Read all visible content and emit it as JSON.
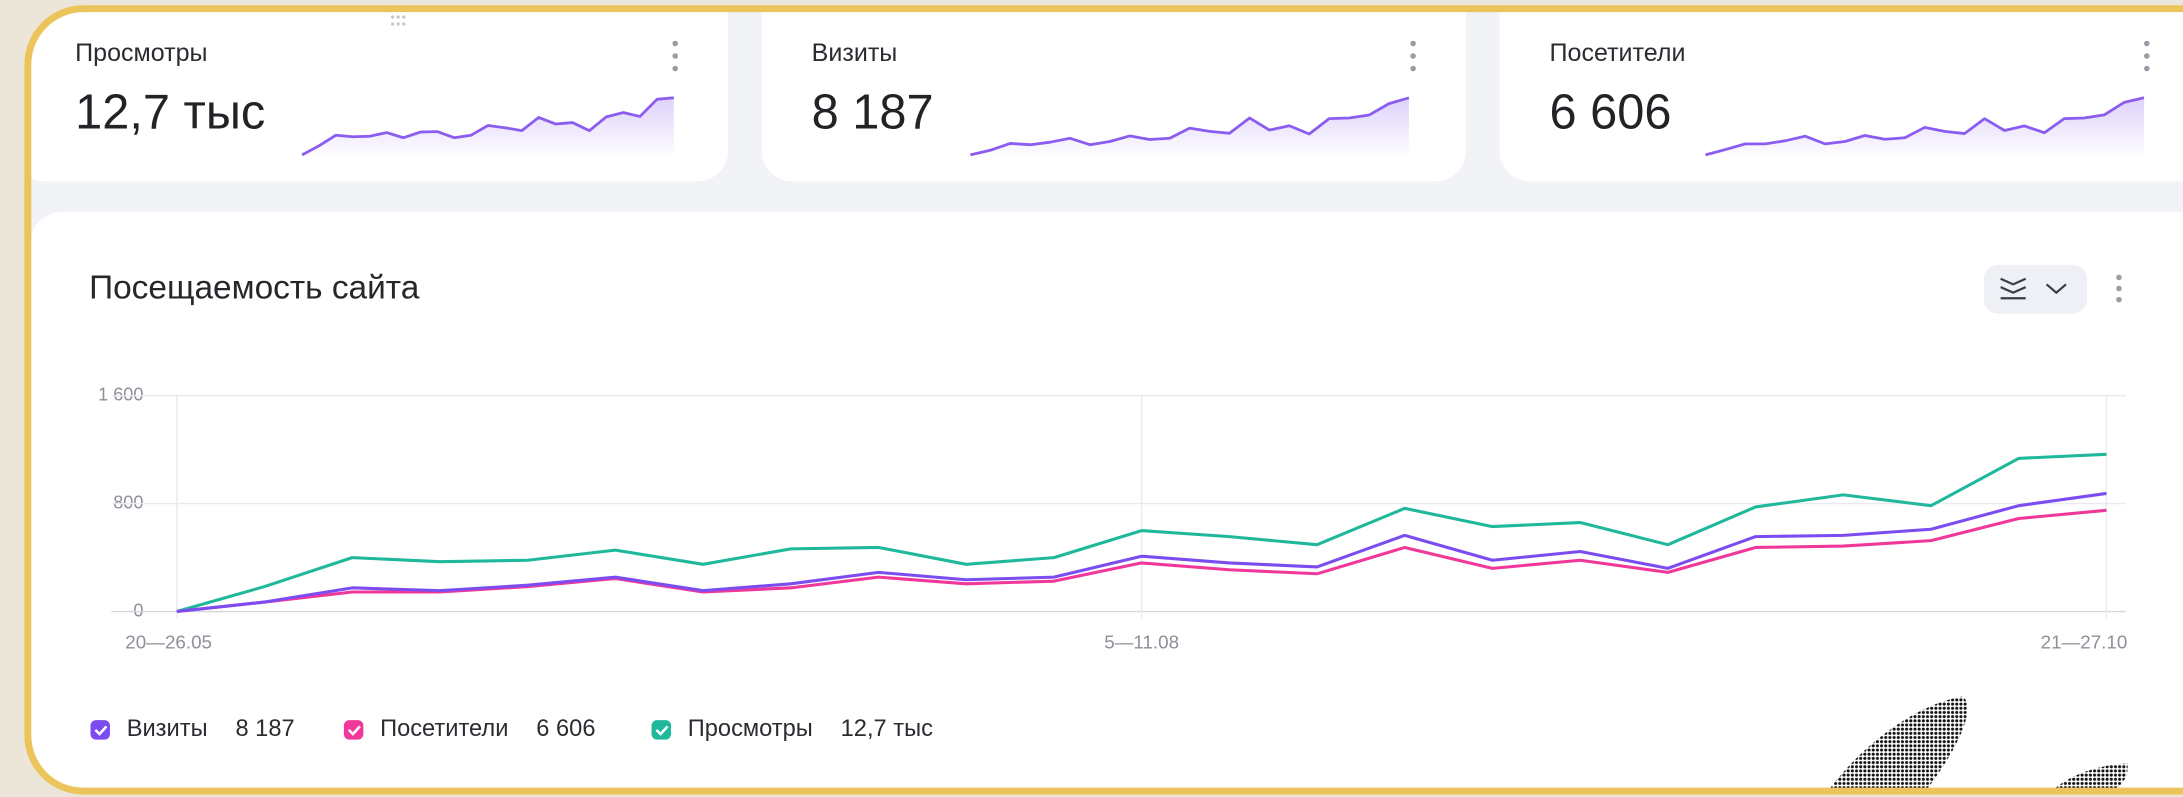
{
  "cards": [
    {
      "title": "Просмотры",
      "value": "12,7 тыс"
    },
    {
      "title": "Визиты",
      "value": "8 187"
    },
    {
      "title": "Посетители",
      "value": "6 606"
    }
  ],
  "chart_data": {
    "type": "line",
    "title": "Посещаемость сайта",
    "categories": [
      "20—26.05",
      null,
      null,
      null,
      null,
      null,
      null,
      null,
      null,
      null,
      null,
      "5—11.08",
      null,
      null,
      null,
      null,
      null,
      null,
      null,
      null,
      null,
      null,
      "21—27.10"
    ],
    "series": [
      {
        "name": "Визиты",
        "color": "#7b4df0",
        "values": [
          0,
          70,
          175,
          155,
          195,
          255,
          155,
          205,
          290,
          235,
          255,
          410,
          360,
          330,
          565,
          380,
          445,
          320,
          555,
          565,
          610,
          785,
          875
        ]
      },
      {
        "name": "Посетители",
        "color": "#f0379a",
        "values": [
          0,
          70,
          145,
          145,
          185,
          245,
          145,
          175,
          255,
          205,
          225,
          360,
          310,
          280,
          475,
          320,
          380,
          290,
          475,
          485,
          525,
          690,
          750
        ]
      },
      {
        "name": "Просмотры",
        "color": "#1fb89a",
        "values": [
          0,
          185,
          400,
          370,
          380,
          455,
          350,
          465,
          475,
          350,
          400,
          600,
          555,
          495,
          765,
          630,
          660,
          495,
          775,
          865,
          785,
          1135,
          1165
        ]
      }
    ],
    "ylim": [
      0,
      1600
    ],
    "yticks": [
      0,
      800,
      {
        "value": 1600,
        "label": "1 600"
      }
    ],
    "grid": true
  }
}
